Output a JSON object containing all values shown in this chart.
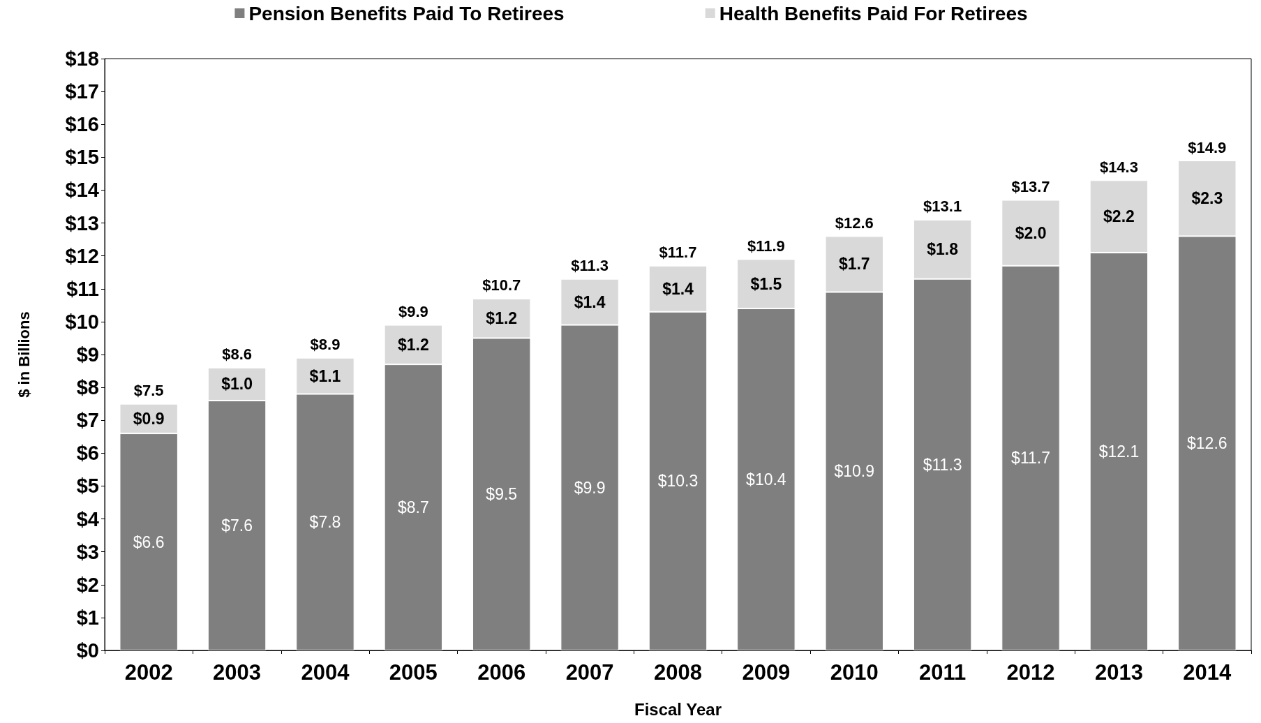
{
  "chart_data": {
    "type": "bar",
    "stacked": true,
    "xlabel": "Fiscal Year",
    "ylabel": "$ in Billions",
    "categories": [
      "2002",
      "2003",
      "2004",
      "2005",
      "2006",
      "2007",
      "2008",
      "2009",
      "2010",
      "2011",
      "2012",
      "2013",
      "2014"
    ],
    "series": [
      {
        "name": "Pension Benefits Paid To Retirees",
        "color": "#7f7f7f",
        "values": [
          6.6,
          7.6,
          7.8,
          8.7,
          9.5,
          9.9,
          10.3,
          10.4,
          10.9,
          11.3,
          11.7,
          12.1,
          12.6
        ],
        "value_labels": [
          "$6.6",
          "$7.6",
          "$7.8",
          "$8.7",
          "$9.5",
          "$9.9",
          "$10.3",
          "$10.4",
          "$10.9",
          "$11.3",
          "$11.7",
          "$12.1",
          "$12.6"
        ]
      },
      {
        "name": "Health Benefits Paid For Retirees",
        "color": "#d9d9d9",
        "values": [
          0.9,
          1.0,
          1.1,
          1.2,
          1.2,
          1.4,
          1.4,
          1.5,
          1.7,
          1.8,
          2.0,
          2.2,
          2.3
        ],
        "value_labels": [
          "$0.9",
          "$1.0",
          "$1.1",
          "$1.2",
          "$1.2",
          "$1.4",
          "$1.4",
          "$1.5",
          "$1.7",
          "$1.8",
          "$2.0",
          "$2.2",
          "$2.3"
        ]
      }
    ],
    "totals": [
      "$7.5",
      "$8.6",
      "$8.9",
      "$9.9",
      "$10.7",
      "$11.3",
      "$11.7",
      "$11.9",
      "$12.6",
      "$13.1",
      "$13.7",
      "$14.3",
      "$14.9"
    ],
    "ylim": [
      0,
      18
    ],
    "yticks": [
      {
        "value": 0,
        "label": "$0"
      },
      {
        "value": 1,
        "label": "$1"
      },
      {
        "value": 2,
        "label": "$2"
      },
      {
        "value": 3,
        "label": "$3"
      },
      {
        "value": 4,
        "label": "$4"
      },
      {
        "value": 5,
        "label": "$5"
      },
      {
        "value": 6,
        "label": "$6"
      },
      {
        "value": 7,
        "label": "$7"
      },
      {
        "value": 8,
        "label": "$8"
      },
      {
        "value": 9,
        "label": "$9"
      },
      {
        "value": 10,
        "label": "$10"
      },
      {
        "value": 11,
        "label": "$11"
      },
      {
        "value": 12,
        "label": "$12"
      },
      {
        "value": 13,
        "label": "$13"
      },
      {
        "value": 14,
        "label": "$14"
      },
      {
        "value": 15,
        "label": "$15"
      },
      {
        "value": 16,
        "label": "$16"
      },
      {
        "value": 17,
        "label": "$17"
      },
      {
        "value": 18,
        "label": "$18"
      }
    ],
    "grid": false,
    "legend": "top"
  }
}
